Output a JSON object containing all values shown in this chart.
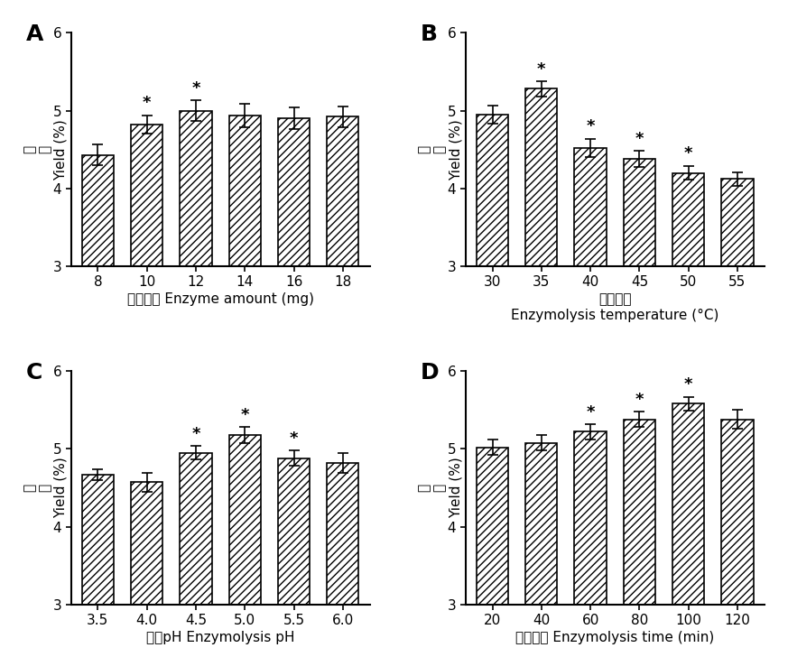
{
  "panels": [
    {
      "label": "A",
      "categories": [
        "8",
        "10",
        "12",
        "14",
        "16",
        "18"
      ],
      "values": [
        4.43,
        4.82,
        5.0,
        4.94,
        4.9,
        4.92
      ],
      "errors": [
        0.13,
        0.12,
        0.13,
        0.15,
        0.14,
        0.13
      ],
      "sig": [
        false,
        true,
        true,
        false,
        false,
        false
      ],
      "xlabel_line1": "酶添加量 Enzyme amount (mg)",
      "xlabel_line2": ""
    },
    {
      "label": "B",
      "categories": [
        "30",
        "35",
        "40",
        "45",
        "50",
        "55"
      ],
      "values": [
        4.95,
        5.28,
        4.52,
        4.38,
        4.2,
        4.12
      ],
      "errors": [
        0.12,
        0.1,
        0.12,
        0.1,
        0.09,
        0.09
      ],
      "sig": [
        false,
        true,
        true,
        true,
        true,
        false
      ],
      "xlabel_line1": "酵解温度",
      "xlabel_line2": "Enzymolysis temperature (°C)"
    },
    {
      "label": "C",
      "categories": [
        "3.5",
        "4.0",
        "4.5",
        "5.0",
        "5.5",
        "6.0"
      ],
      "values": [
        4.67,
        4.57,
        4.95,
        5.18,
        4.88,
        4.82
      ],
      "errors": [
        0.07,
        0.12,
        0.09,
        0.1,
        0.1,
        0.13
      ],
      "sig": [
        false,
        false,
        true,
        true,
        true,
        false
      ],
      "xlabel_line1": "酵解pH Enzymolysis pH",
      "xlabel_line2": ""
    },
    {
      "label": "D",
      "categories": [
        "20",
        "40",
        "60",
        "80",
        "100",
        "120"
      ],
      "values": [
        5.02,
        5.08,
        5.22,
        5.38,
        5.58,
        5.38
      ],
      "errors": [
        0.1,
        0.1,
        0.1,
        0.1,
        0.09,
        0.12
      ],
      "sig": [
        false,
        false,
        true,
        true,
        true,
        false
      ],
      "xlabel_line1": "酵解时间 Enzymolysis time (min)",
      "xlabel_line2": ""
    }
  ],
  "ylim": [
    3,
    6
  ],
  "yticks": [
    3,
    4,
    5,
    6
  ],
  "ylabel_cn": "得率",
  "ylabel_en": "Yield (%)",
  "bar_color": "#ffffff",
  "hatch_pattern": "////",
  "edge_color": "#000000",
  "background_color": "#ffffff",
  "sig_marker": "*",
  "sig_fontsize": 13,
  "panel_label_fontsize": 18,
  "tick_fontsize": 11,
  "ylabel_fontsize": 11,
  "xlabel_fontsize": 11
}
